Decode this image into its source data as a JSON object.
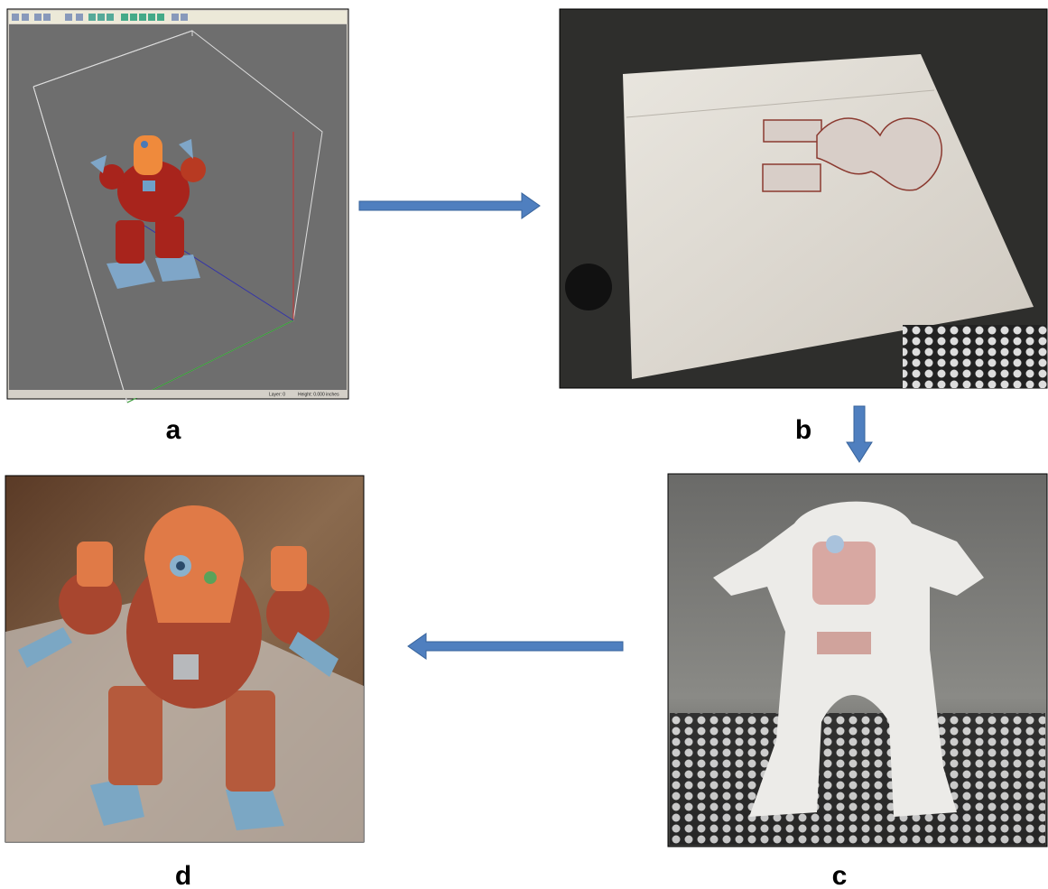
{
  "panels": [
    {
      "label": "a",
      "status": [
        "Layer: 0",
        "Height: 0.000 inches"
      ]
    },
    {
      "label": "b"
    },
    {
      "label": "c"
    },
    {
      "label": "d"
    }
  ]
}
